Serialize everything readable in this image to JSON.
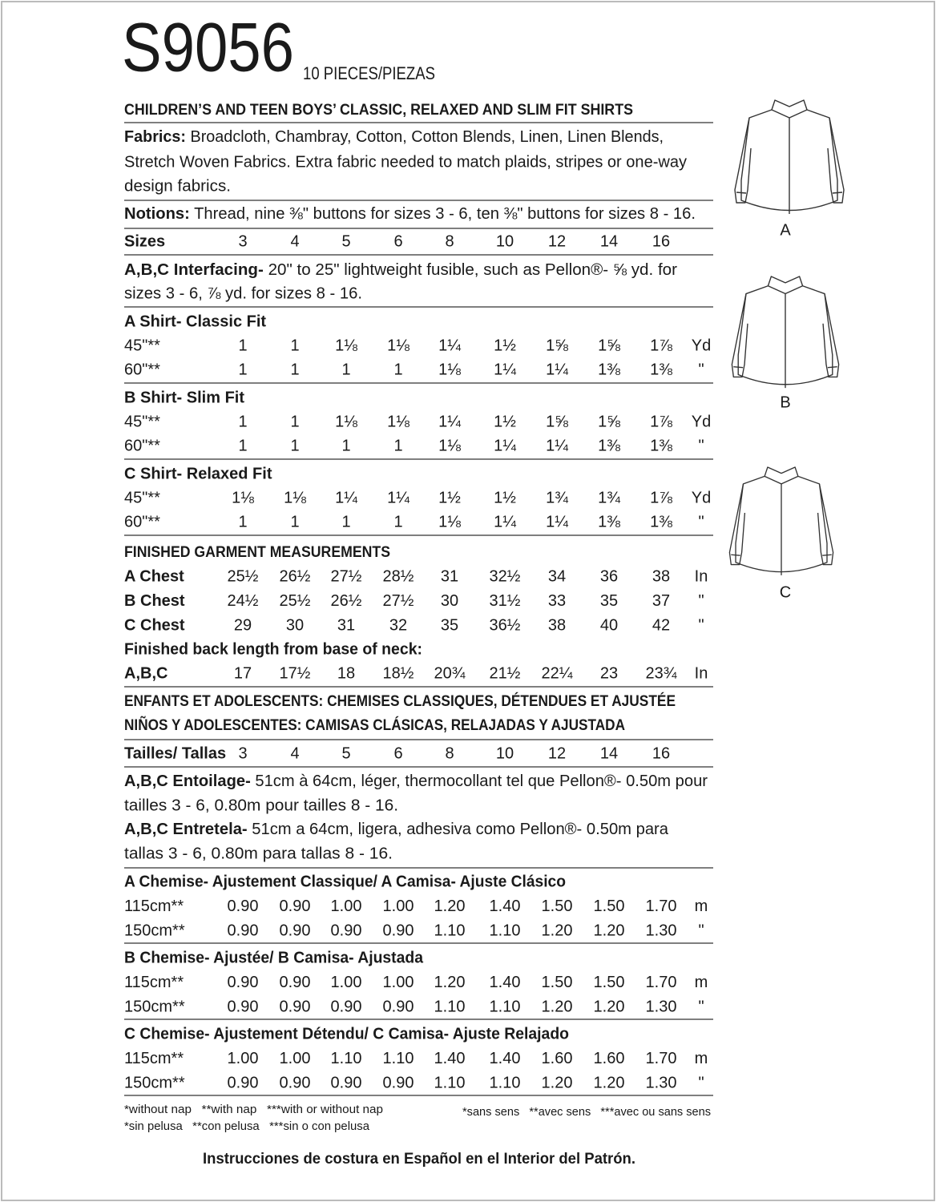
{
  "header": {
    "number": "S9056",
    "pieces": "10 PIECES/PIEZAS",
    "title": "CHILDREN’S AND TEEN BOYS’ CLASSIC, RELAXED AND SLIM FIT SHIRTS"
  },
  "fabrics": {
    "label": "Fabrics:",
    "lines": [
      "Broadcloth, Chambray, Cotton, Cotton Blends, Linen, Linen Blends,",
      "Stretch Woven Fabrics. Extra fabric needed to match plaids, stripes or one-way",
      "design fabrics."
    ]
  },
  "notions": {
    "label": "Notions:",
    "text": "Thread, nine ⅜\" buttons for sizes 3 - 6, ten ⅜\" buttons for sizes 8 - 16."
  },
  "sizes": {
    "label": "Sizes",
    "values": [
      "3",
      "4",
      "5",
      "6",
      "8",
      "10",
      "12",
      "14",
      "16"
    ]
  },
  "interfacing": {
    "label": "A,B,C Interfacing-",
    "lines": [
      "20\" to 25\" lightweight fusible, such as Pellon®- ⅝ yd. for",
      "sizes 3 - 6, ⅞ yd. for sizes 8 - 16."
    ]
  },
  "yardage": [
    {
      "title": "A Shirt- Classic Fit",
      "rows": [
        {
          "label": "45\"**",
          "cells": [
            "1",
            "1",
            "1⅛",
            "1⅛",
            "1¼",
            "1½",
            "1⅝",
            "1⅝",
            "1⅞"
          ],
          "unit": "Yd"
        },
        {
          "label": "60\"**",
          "cells": [
            "1",
            "1",
            "1",
            "1",
            "1⅛",
            "1¼",
            "1¼",
            "1⅜",
            "1⅜"
          ],
          "unit": "\""
        }
      ]
    },
    {
      "title": "B Shirt- Slim Fit",
      "rows": [
        {
          "label": "45\"**",
          "cells": [
            "1",
            "1",
            "1⅛",
            "1⅛",
            "1¼",
            "1½",
            "1⅝",
            "1⅝",
            "1⅞"
          ],
          "unit": "Yd"
        },
        {
          "label": "60\"**",
          "cells": [
            "1",
            "1",
            "1",
            "1",
            "1⅛",
            "1¼",
            "1¼",
            "1⅜",
            "1⅜"
          ],
          "unit": "\""
        }
      ]
    },
    {
      "title": "C Shirt- Relaxed Fit",
      "rows": [
        {
          "label": "45\"**",
          "cells": [
            "1⅛",
            "1⅛",
            "1¼",
            "1¼",
            "1½",
            "1½",
            "1¾",
            "1¾",
            "1⅞"
          ],
          "unit": "Yd"
        },
        {
          "label": "60\"**",
          "cells": [
            "1",
            "1",
            "1",
            "1",
            "1⅛",
            "1¼",
            "1¼",
            "1⅜",
            "1⅜"
          ],
          "unit": "\""
        }
      ]
    }
  ],
  "measurements": {
    "title": "FINISHED GARMENT MEASUREMENTS",
    "rows": [
      {
        "label": "A Chest",
        "cells": [
          "25½",
          "26½",
          "27½",
          "28½",
          "31",
          "32½",
          "34",
          "36",
          "38"
        ],
        "unit": "In"
      },
      {
        "label": "B Chest",
        "cells": [
          "24½",
          "25½",
          "26½",
          "27½",
          "30",
          "31½",
          "33",
          "35",
          "37"
        ],
        "unit": "\""
      },
      {
        "label": "C Chest",
        "cells": [
          "29",
          "30",
          "31",
          "32",
          "35",
          "36½",
          "38",
          "40",
          "42"
        ],
        "unit": "\""
      }
    ],
    "back_title": "Finished back length from base of neck:",
    "back_row": {
      "label": "A,B,C",
      "cells": [
        "17",
        "17½",
        "18",
        "18½",
        "20¾",
        "21½",
        "22¼",
        "23",
        "23¾"
      ],
      "unit": "In"
    }
  },
  "translated_titles": [
    "ENFANTS ET ADOLESCENTS: CHEMISES CLASSIQUES, DÉTENDUES ET AJUSTÉE",
    "NIÑOS Y ADOLESCENTES: CAMISAS CLÁSICAS, RELAJADAS Y AJUSTADA"
  ],
  "tailles": {
    "label": "Tailles/ Tallas",
    "values": [
      "3",
      "4",
      "5",
      "6",
      "8",
      "10",
      "12",
      "14",
      "16"
    ]
  },
  "entoilage": {
    "label": "A,B,C Entoilage-",
    "lines": [
      "51cm à 64cm, léger, thermocollant tel que Pellon®- 0.50m pour",
      "tailles 3 - 6, 0.80m pour tailles 8 - 16."
    ]
  },
  "entretela": {
    "label": "A,B,C Entretela-",
    "lines": [
      "51cm a 64cm, ligera, adhesiva como Pellon®- 0.50m para",
      "tallas 3 - 6, 0.80m para tallas 8 - 16."
    ]
  },
  "metric": [
    {
      "title": "A Chemise- Ajustement Classique/ A Camisa- Ajuste Clásico",
      "rows": [
        {
          "label": "115cm**",
          "cells": [
            "0.90",
            "0.90",
            "1.00",
            "1.00",
            "1.20",
            "1.40",
            "1.50",
            "1.50",
            "1.70"
          ],
          "unit": "m"
        },
        {
          "label": "150cm**",
          "cells": [
            "0.90",
            "0.90",
            "0.90",
            "0.90",
            "1.10",
            "1.10",
            "1.20",
            "1.20",
            "1.30"
          ],
          "unit": "\""
        }
      ]
    },
    {
      "title": "B Chemise- Ajustée/ B Camisa- Ajustada",
      "rows": [
        {
          "label": "115cm**",
          "cells": [
            "0.90",
            "0.90",
            "1.00",
            "1.00",
            "1.20",
            "1.40",
            "1.50",
            "1.50",
            "1.70"
          ],
          "unit": "m"
        },
        {
          "label": "150cm**",
          "cells": [
            "0.90",
            "0.90",
            "0.90",
            "0.90",
            "1.10",
            "1.10",
            "1.20",
            "1.20",
            "1.30"
          ],
          "unit": "\""
        }
      ]
    },
    {
      "title": "C Chemise- Ajustement Détendu/ C Camisa- Ajuste Relajado",
      "rows": [
        {
          "label": "115cm**",
          "cells": [
            "1.00",
            "1.00",
            "1.10",
            "1.10",
            "1.40",
            "1.40",
            "1.60",
            "1.60",
            "1.70"
          ],
          "unit": "m"
        },
        {
          "label": "150cm**",
          "cells": [
            "0.90",
            "0.90",
            "0.90",
            "0.90",
            "1.10",
            "1.10",
            "1.20",
            "1.20",
            "1.30"
          ],
          "unit": "\""
        }
      ]
    }
  ],
  "footnotes": {
    "left": [
      "*without nap   **with nap   ***with or without nap",
      "*sin pelusa   **con pelusa   ***sin o con pelusa"
    ],
    "right": "*sans sens   **avec sens   ***avec ou sans sens"
  },
  "footer": "Instrucciones de costura en Español en el Interior del Patrón.",
  "sketch_labels": [
    "A",
    "B",
    "C"
  ]
}
